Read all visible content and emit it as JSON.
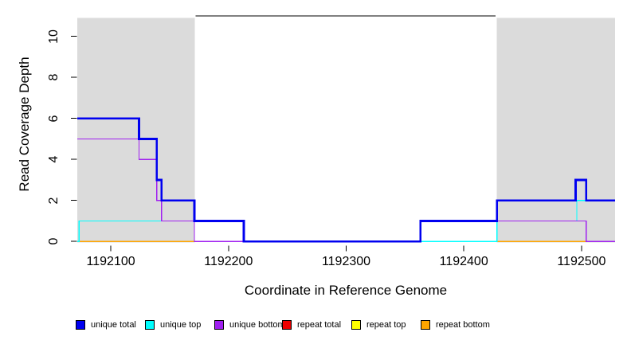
{
  "title": {
    "xlabel": "Coordinate in Reference Genome",
    "ylabel": "Read Coverage Depth"
  },
  "chart_data": {
    "type": "line",
    "subtype": "step-function-coverage",
    "xlabel": "Coordinate in Reference Genome",
    "ylabel": "Read Coverage Depth",
    "xlim": [
      1192071.5,
      1192528.5
    ],
    "ylim": [
      0,
      11
    ],
    "grid": "off",
    "x_ticks": [
      {
        "value": 1192100,
        "label": "1192100"
      },
      {
        "value": 1192200,
        "label": "1192200"
      },
      {
        "value": 1192300,
        "label": "1192300"
      },
      {
        "value": 1192400,
        "label": "1192400"
      },
      {
        "value": 1192500,
        "label": "1192500"
      }
    ],
    "y_ticks": [
      {
        "value": 0,
        "label": "0"
      },
      {
        "value": 2,
        "label": "2"
      },
      {
        "value": 4,
        "label": "4"
      },
      {
        "value": 6,
        "label": "6"
      },
      {
        "value": 8,
        "label": "8"
      },
      {
        "value": 10,
        "label": "10"
      }
    ],
    "background_shading": {
      "label": "repeat-regions",
      "color": "#DBDBDB",
      "regions": [
        [
          1192071.5,
          1192171.5
        ],
        [
          1192428,
          1192528.5
        ]
      ]
    },
    "annotation_line": {
      "label": "unique-region-span",
      "color": "#000000",
      "x": [
        1192172,
        1192427
      ],
      "y": 11
    },
    "series": [
      {
        "name": "repeat total",
        "color": "#EE0000",
        "width": 1.2,
        "segments": [
          {
            "x": [
              1192072,
              1192171
            ],
            "levels": [
              0
            ]
          },
          {
            "x": [
              1192428,
              1192504
            ],
            "levels": [
              0
            ]
          }
        ]
      },
      {
        "name": "repeat top",
        "color": "#FFFF00",
        "width": 1.2,
        "segments": [
          {
            "x": [
              1192072,
              1192171
            ],
            "levels": [
              0
            ]
          },
          {
            "x": [
              1192428,
              1192504
            ],
            "levels": [
              0
            ]
          }
        ]
      },
      {
        "name": "repeat bottom",
        "color": "#FFA500",
        "width": 1.6,
        "segments": [
          {
            "x": [
              1192072,
              1192171
            ],
            "levels": [
              0
            ]
          },
          {
            "x": [
              1192428,
              1192504
            ],
            "levels": [
              0
            ]
          }
        ]
      },
      {
        "name": "unique top",
        "color": "#00FFFF",
        "width": 1.4,
        "segments": [
          {
            "x": [
              1192071.5,
              1192073,
              1192213,
              1192428,
              1192496,
              1192528.5
            ],
            "levels": [
              0,
              1,
              0,
              1,
              2
            ]
          }
        ]
      },
      {
        "name": "unique bottom",
        "color": "#A020F0",
        "width": 1.4,
        "segments": [
          {
            "x": [
              1192071.5,
              1192124,
              1192139,
              1192143,
              1192171,
              1192363,
              1192504,
              1192528.5
            ],
            "levels": [
              5,
              4,
              2,
              1,
              0,
              1,
              0
            ]
          }
        ]
      },
      {
        "name": "unique total",
        "color": "#0000F0",
        "width": 2.6,
        "segments": [
          {
            "x": [
              1192071.5,
              1192124,
              1192139,
              1192143,
              1192171,
              1192213,
              1192363,
              1192428,
              1192495,
              1192504,
              1192528.5
            ],
            "levels": [
              6,
              5,
              3,
              2,
              1,
              0,
              1,
              2,
              3,
              2
            ]
          }
        ]
      }
    ],
    "legend": [
      {
        "label": "unique total",
        "color": "#0000F0"
      },
      {
        "label": "unique top",
        "color": "#00FFFF"
      },
      {
        "label": "unique bottom",
        "color": "#A020F0"
      },
      {
        "label": "repeat total",
        "color": "#EE0000"
      },
      {
        "label": "repeat top",
        "color": "#FFFF00"
      },
      {
        "label": "repeat bottom",
        "color": "#FFA500"
      }
    ],
    "legend_position": "bottom"
  }
}
